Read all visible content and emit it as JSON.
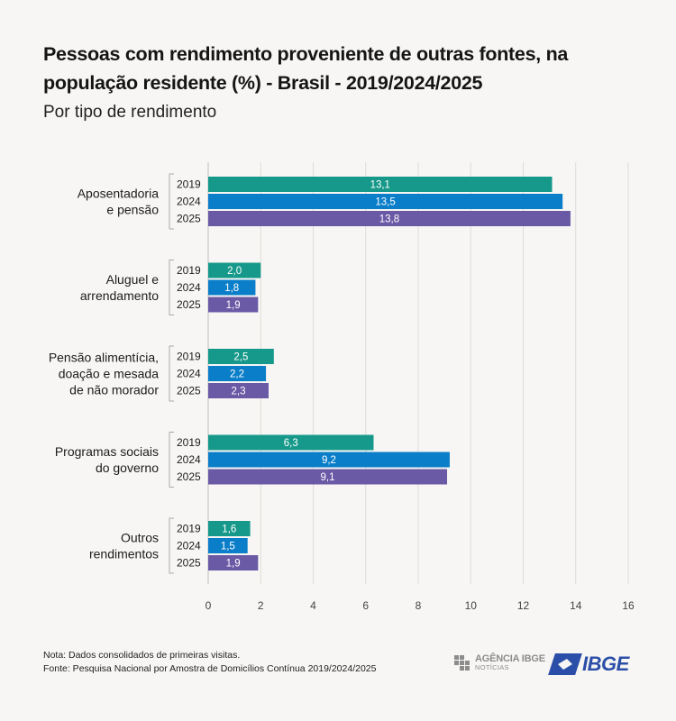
{
  "title": "Pessoas com rendimento proveniente de outras fontes, na população residente (%) - Brasil - 2019/2024/2025",
  "subtitle": "Por tipo de rendimento",
  "chart_data": {
    "type": "bar",
    "orientation": "horizontal",
    "categories": [
      [
        "Aposentadoria",
        "e pensão"
      ],
      [
        "Aluguel e",
        "arrendamento"
      ],
      [
        "Pensão alimentícia,",
        "doação e mesada",
        "de não morador"
      ],
      [
        "Programas sociais",
        "do governo"
      ],
      [
        "Outros",
        "rendimentos"
      ]
    ],
    "series": [
      {
        "name": "2019",
        "color": "#16998a",
        "values": [
          13.1,
          2.0,
          2.5,
          6.3,
          1.6
        ],
        "labels": [
          "13,1",
          "2,0",
          "2,5",
          "6,3",
          "1,6"
        ]
      },
      {
        "name": "2024",
        "color": "#0a7ec8",
        "values": [
          13.5,
          1.8,
          2.2,
          9.2,
          1.5
        ],
        "labels": [
          "13,5",
          "1,8",
          "2,2",
          "9,2",
          "1,5"
        ]
      },
      {
        "name": "2025",
        "color": "#6a5aa6",
        "values": [
          13.8,
          1.9,
          2.3,
          9.1,
          1.9
        ],
        "labels": [
          "13,8",
          "1,9",
          "2,3",
          "9,1",
          "1,9"
        ]
      }
    ],
    "xlim": [
      0,
      16
    ],
    "xticks": [
      0,
      2,
      4,
      6,
      8,
      10,
      12,
      14,
      16
    ],
    "grid": true,
    "legend": "none"
  },
  "notes": {
    "nota": "Nota: Dados consolidados de primeiras visitas.",
    "fonte": "Fonte: Pesquisa Nacional por Amostra de Domicílios Contínua 2019/2024/2025"
  },
  "logos": {
    "agencia_line1": "AGÊNCIA IBGE",
    "agencia_line2": "NOTÍCIAS",
    "ibge": "IBGE"
  }
}
